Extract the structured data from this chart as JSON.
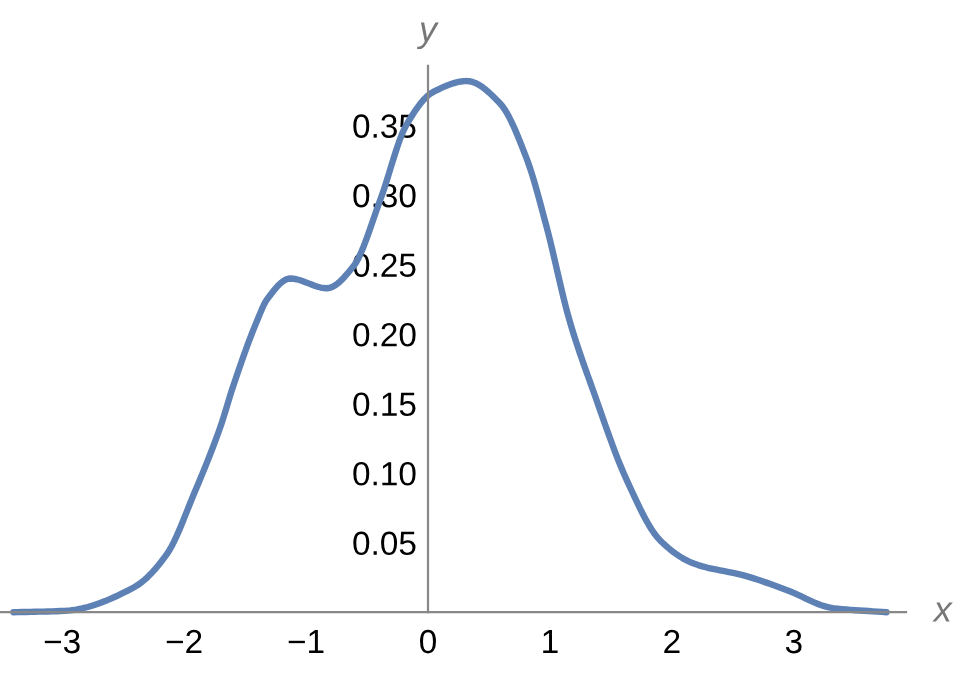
{
  "chart_data": {
    "type": "line",
    "xlabel": "x",
    "ylabel": "y",
    "xlim": [
      -3.51,
      3.92
    ],
    "ylim": [
      0,
      0.393
    ],
    "xticks": [
      -3,
      -2,
      -1,
      0,
      1,
      2,
      3
    ],
    "yticks": [
      0.05,
      {
        "value": 0.1,
        "label": "0.10"
      },
      0.15,
      {
        "value": 0.2,
        "label": "0.20"
      },
      0.25,
      {
        "value": 0.3,
        "label": "0.30"
      },
      0.35
    ],
    "grid": false,
    "legend": false,
    "marker": "none",
    "line_style": "solid",
    "series": [
      {
        "color": "#5e81b5",
        "x": [
          -3.4,
          -2.98,
          -2.41,
          -2.14,
          -1.92,
          -1.7,
          -1.6,
          -1.4,
          -1.32,
          -1.13,
          -0.83,
          -0.61,
          -0.39,
          -0.18,
          0.04,
          0.32,
          0.59,
          0.81,
          0.97,
          1.16,
          1.36,
          1.63,
          1.9,
          2.18,
          2.61,
          2.94,
          3.32,
          3.76
        ],
        "values": [
          0.0,
          0.001,
          0.018,
          0.042,
          0.085,
          0.134,
          0.162,
          0.21,
          0.225,
          0.24,
          0.233,
          0.249,
          0.297,
          0.35,
          0.374,
          0.382,
          0.366,
          0.326,
          0.278,
          0.21,
          0.158,
          0.095,
          0.052,
          0.035,
          0.026,
          0.016,
          0.003,
          0.0
        ]
      }
    ]
  }
}
